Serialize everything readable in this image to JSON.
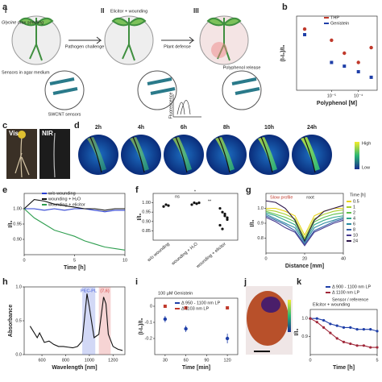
{
  "panels": {
    "labels": [
      "a",
      "b",
      "c",
      "d",
      "e",
      "f",
      "g",
      "h",
      "i",
      "j",
      "k"
    ],
    "a": {
      "steps": [
        "I",
        "II",
        "III"
      ],
      "seedling": "Glycine max seedling",
      "sensors": "Sensors in agar medium",
      "pathogen": "Pathogen challenge",
      "elicitor": "Elicitor + wounding",
      "defense": "Plant defense",
      "release": "Polyphenol release",
      "swcnt": "SWCNT sensors",
      "fluor": "Fluorescence"
    },
    "c": {
      "vis": "Vis",
      "nir": "NIR"
    },
    "d": {
      "times": [
        "2h",
        "4h",
        "6h",
        "8h",
        "10h",
        "24h"
      ],
      "high": "High",
      "low": "Low"
    }
  },
  "chart_data": [
    {
      "type": "scatter",
      "xlog": true,
      "xlabel": "Polyphenol [M]",
      "ylabel": "(I-I₀)/I₀",
      "x": [
        1e-06,
        1e-05,
        3e-05,
        0.0001,
        0.0003
      ],
      "xlim": [
        5e-07,
        0.0005
      ],
      "xticks": [
        {
          "value": 1e-05,
          "label": "10⁻⁵"
        },
        {
          "value": 0.0001,
          "label": "10⁻⁴"
        }
      ],
      "ylim": [
        -0.35,
        0.05
      ],
      "yticks": [],
      "series": [
        {
          "name": "THP",
          "color": "#c0392b",
          "values": [
            -0.02,
            -0.08,
            -0.15,
            -0.2,
            -0.12
          ]
        },
        {
          "name": "Genistein",
          "color": "#1f3fa8",
          "values": [
            -0.05,
            -0.2,
            -0.22,
            -0.25,
            -0.28
          ]
        }
      ]
    },
    {
      "type": "line",
      "xlabel": "Time [h]",
      "ylabel": "I/I₀",
      "x": [
        0,
        1,
        2,
        3,
        4,
        5,
        6,
        7,
        8,
        9,
        10
      ],
      "xlim": [
        0,
        10
      ],
      "xticks": [
        0,
        5,
        10
      ],
      "ylim": [
        0.85,
        1.05
      ],
      "yticks": [
        {
          "value": 0.9,
          "label": "0.90"
        },
        {
          "value": 0.95,
          "label": "0.95"
        },
        {
          "value": 1,
          "label": "1.00"
        }
      ],
      "series": [
        {
          "name": "w/o wounding",
          "color": "#2b3fd1",
          "values": [
            1,
            1,
            0.995,
            1,
            0.995,
            1,
            1,
            0.995,
            0.99,
            0.995,
            0.995
          ]
        },
        {
          "name": "wounding + H₂O",
          "color": "#111111",
          "values": [
            1,
            1.03,
            1.025,
            1.015,
            1.01,
            1.005,
            1,
            1,
            0.995,
            1,
            1
          ]
        },
        {
          "name": "wounding + elicitor",
          "color": "#2e9e4f",
          "values": [
            1,
            0.97,
            0.95,
            0.93,
            0.92,
            0.91,
            0.895,
            0.885,
            0.875,
            0.87,
            0.865
          ]
        }
      ]
    },
    {
      "type": "dot",
      "ylabel": "I/I₀",
      "categories": [
        "w/o wounding",
        "wounding + H₂O",
        "wounding + elicitor"
      ],
      "points": [
        [
          0.98,
          0.99,
          0.985
        ],
        [
          0.99,
          1,
          0.995,
          1
        ],
        [
          0.97,
          0.95,
          0.93,
          0.91,
          0.88,
          0.86,
          0.94,
          0.92
        ]
      ],
      "ylim": [
        0.8,
        1.05
      ],
      "yticks": [
        {
          "value": 0.85,
          "label": "0.85"
        },
        {
          "value": 0.9,
          "label": "0.90"
        },
        {
          "value": 0.95,
          "label": "0.95"
        },
        {
          "value": 1,
          "label": "1.00"
        }
      ],
      "annotations": [
        "ns",
        "*",
        "**"
      ]
    },
    {
      "type": "line",
      "xlabel": "Distance [mm]",
      "ylabel": "I/I₀",
      "legend_title": "Time [h]",
      "x": [
        0,
        5,
        10,
        15,
        20,
        25,
        30,
        35,
        40
      ],
      "xlim": [
        0,
        40
      ],
      "xticks": [
        0,
        20,
        40
      ],
      "ylim": [
        0.7,
        1.1
      ],
      "yticks": [
        0.8,
        {
          "value": 0.9,
          "label": "0.9"
        },
        {
          "value": 1,
          "label": "1.0"
        }
      ],
      "annotations": [
        "Slow profile",
        "root"
      ],
      "series": [
        {
          "name": "0.5",
          "color": "#e8d21a",
          "values": [
            1,
            1,
            0.98,
            0.95,
            0.82,
            0.95,
            0.98,
            1,
            1
          ]
        },
        {
          "name": "1",
          "color": "#a8cf2c",
          "values": [
            0.99,
            0.98,
            0.96,
            0.93,
            0.8,
            0.93,
            0.96,
            0.98,
            0.99
          ]
        },
        {
          "name": "2",
          "color": "#5fbf4a",
          "values": [
            0.98,
            0.96,
            0.94,
            0.91,
            0.79,
            0.91,
            0.94,
            0.96,
            0.97
          ]
        },
        {
          "name": "4",
          "color": "#2fa88a",
          "values": [
            0.97,
            0.95,
            0.92,
            0.89,
            0.78,
            0.89,
            0.92,
            0.94,
            0.95
          ]
        },
        {
          "name": "6",
          "color": "#2a8aa0",
          "values": [
            0.96,
            0.93,
            0.9,
            0.87,
            0.77,
            0.87,
            0.9,
            0.92,
            0.94
          ]
        },
        {
          "name": "8",
          "color": "#3562a8",
          "values": [
            0.95,
            0.92,
            0.89,
            0.85,
            0.76,
            0.85,
            0.88,
            0.91,
            0.93
          ]
        },
        {
          "name": "10",
          "color": "#46398f",
          "values": [
            0.94,
            0.91,
            0.87,
            0.84,
            0.75,
            0.84,
            0.87,
            0.9,
            0.92
          ]
        },
        {
          "name": "24",
          "color": "#2a1248",
          "values": [
            1.05,
            1.04,
            1,
            0.92,
            0.78,
            0.92,
            0.98,
            1,
            1.02
          ]
        }
      ]
    },
    {
      "type": "line",
      "xlabel": "Wavelength [nm]",
      "ylabel": "Absorbance",
      "x": [
        500,
        560,
        580,
        620,
        660,
        700,
        740,
        780,
        820,
        860,
        900,
        940,
        980,
        1000,
        1040,
        1080,
        1120,
        1140,
        1160,
        1200,
        1240,
        1280
      ],
      "xlim": [
        450,
        1300
      ],
      "xticks": [
        600,
        800,
        1000,
        1200
      ],
      "ylim": [
        0,
        1
      ],
      "yticks": [
        {
          "value": 0,
          "label": "0.0"
        },
        {
          "value": 0.5,
          "label": "0.5"
        },
        {
          "value": 1,
          "label": "1.0"
        }
      ],
      "bands": [
        {
          "name": "PEC-PL",
          "sub": "(6,5)",
          "range": [
            940,
            1050
          ],
          "color": "#6b7fe0"
        },
        {
          "name": "(7,6)",
          "sub": "(7,6)",
          "range": [
            1080,
            1180
          ],
          "color": "#e07070"
        }
      ],
      "series": [
        {
          "name": "Absorbance",
          "color": "#111111",
          "values": [
            0.42,
            0.25,
            0.32,
            0.18,
            0.2,
            0.15,
            0.12,
            0.12,
            0.11,
            0.1,
            0.12,
            0.2,
            0.9,
            0.7,
            0.25,
            0.3,
            0.85,
            0.75,
            0.3,
            0.12,
            0.08,
            0.06
          ]
        }
      ]
    },
    {
      "type": "scatter",
      "xlabel": "Time [min]",
      "ylabel": "(I-I₀)/I₀",
      "x": [
        30,
        60,
        120
      ],
      "xlim": [
        15,
        135
      ],
      "xticks": [
        30,
        60,
        90,
        120
      ],
      "ylim": [
        -0.3,
        0.05
      ],
      "yticks": [
        -0.2,
        -0.1,
        0
      ],
      "annotations": [
        "100 µM Genistein"
      ],
      "series": [
        {
          "name": "Δ 950 - 1100 nm LP",
          "color": "#1f3fa8",
          "values": [
            -0.08,
            -0.14,
            -0.2
          ],
          "errors": [
            0.02,
            0.02,
            0.03
          ]
        },
        {
          "name": "Δ 1103 nm LP",
          "color": "#c0392b",
          "values": [
            0,
            -0.01,
            -0.01
          ],
          "errors": [
            0.01,
            0.01,
            0.01
          ]
        }
      ]
    },
    {
      "type": "line",
      "markers": true,
      "xlabel": "Time [h]",
      "ylabel": "I/I₀",
      "x": [
        0,
        0.5,
        1,
        1.5,
        2,
        2.5,
        3,
        3.5,
        4,
        4.5,
        5
      ],
      "xlim": [
        0,
        5
      ],
      "xticks": [
        0,
        5
      ],
      "ylim": [
        0.8,
        1.05
      ],
      "yticks": [
        {
          "value": 0.9,
          "label": "0.9"
        },
        {
          "value": 1,
          "label": "1.0"
        }
      ],
      "annotations": [
        "Elicitor + wounding",
        "Sensor / reference"
      ],
      "series": [
        {
          "name": "Δ 900 - 1100 nm LP",
          "color": "#1f3fa8",
          "values": [
            1,
            1,
            0.99,
            0.97,
            0.96,
            0.95,
            0.95,
            0.94,
            0.94,
            0.94,
            0.93
          ]
        },
        {
          "name": "Δ 1100 nm LP",
          "color": "#a0283a",
          "values": [
            1,
            0.98,
            0.95,
            0.92,
            0.89,
            0.87,
            0.86,
            0.85,
            0.85,
            0.84,
            0.84
          ]
        }
      ]
    }
  ]
}
